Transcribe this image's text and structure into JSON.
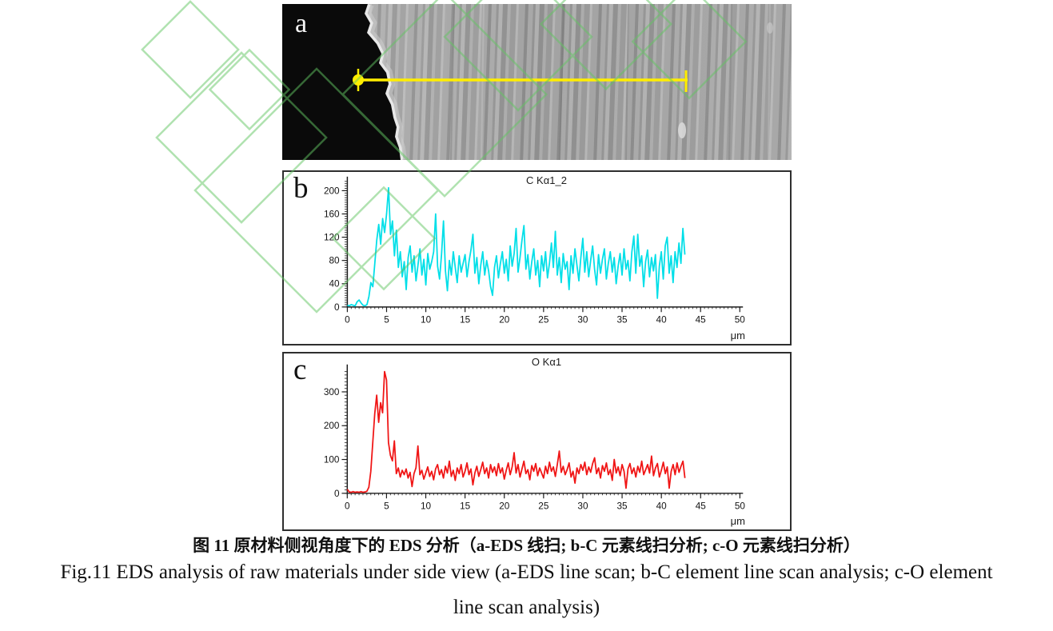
{
  "figure": {
    "panel_a": {
      "label": "a",
      "description": "SEM micrograph with EDS line-scan marker",
      "marker_color": "#ffee00"
    },
    "captions": {
      "zh": "图 11 原材料侧视角度下的 EDS 分析（a-EDS 线扫; b-C 元素线扫分析; c-O 元素线扫分析）",
      "en_line1": "Fig.11 EDS analysis of raw materials under side view (a-EDS line scan; b-C element line scan analysis; c-O element",
      "en_line2": "line scan analysis)"
    }
  },
  "colors": {
    "carbon_line": "#00dfe8",
    "oxygen_line": "#f01515",
    "watermark_green": "#63c663",
    "axis": "#1c1c1c"
  },
  "chart_data": [
    {
      "id": "chart-b",
      "type": "line",
      "panel_label": "b",
      "title": "C Kα1_2",
      "xlabel": "μm",
      "x_ticks": [
        0,
        5,
        10,
        15,
        20,
        25,
        30,
        35,
        40,
        45,
        50
      ],
      "y_ticks": [
        0,
        40,
        80,
        120,
        160,
        200
      ],
      "xlim": [
        0,
        50
      ],
      "ylim": [
        0,
        216
      ],
      "x_minor_step": 0.5,
      "y_minor_step": 4,
      "x_start": 0,
      "x_step": 0.25,
      "color_key": "carbon_line",
      "values": [
        3,
        2,
        4,
        3,
        2,
        9,
        12,
        7,
        3,
        2,
        4,
        18,
        42,
        35,
        75,
        115,
        142,
        108,
        152,
        128,
        160,
        205,
        125,
        148,
        88,
        132,
        68,
        95,
        52,
        78,
        30,
        85,
        105,
        60,
        88,
        45,
        72,
        100,
        55,
        82,
        38,
        92,
        65,
        78,
        95,
        160,
        70,
        48,
        90,
        148,
        62,
        28,
        80,
        55,
        95,
        68,
        42,
        88,
        60,
        75,
        90,
        52,
        78,
        98,
        125,
        58,
        85,
        40,
        72,
        95,
        55,
        80,
        62,
        35,
        20,
        68,
        88,
        50,
        75,
        95,
        58,
        82,
        45,
        105,
        70,
        92,
        135,
        60,
        85,
        115,
        140,
        65,
        90,
        48,
        78,
        100,
        55,
        80,
        35,
        88,
        62,
        95,
        50,
        75,
        110,
        68,
        130,
        55,
        85,
        42,
        92,
        65,
        78,
        30,
        88,
        58,
        100,
        72,
        45,
        85,
        118,
        60,
        95,
        52,
        80,
        105,
        65,
        38,
        90,
        58,
        82,
        100,
        48,
        75,
        95,
        60,
        85,
        40,
        70,
        92,
        55,
        100,
        65,
        80,
        45,
        95,
        122,
        58,
        125,
        70,
        88,
        35,
        78,
        98,
        52,
        85,
        62,
        90,
        15,
        70,
        95,
        48,
        105,
        120,
        58,
        88,
        42,
        95,
        68,
        110,
        75,
        135,
        90
      ]
    },
    {
      "id": "chart-c",
      "type": "line",
      "panel_label": "c",
      "title": "O Kα1",
      "xlabel": "μm",
      "x_ticks": [
        0,
        5,
        10,
        15,
        20,
        25,
        30,
        35,
        40,
        45,
        50
      ],
      "y_ticks": [
        0,
        100,
        200,
        300
      ],
      "xlim": [
        0,
        50
      ],
      "ylim": [
        0,
        367
      ],
      "x_minor_step": 0.5,
      "y_minor_step": 10,
      "x_start": 0,
      "x_step": 0.25,
      "color_key": "oxygen_line",
      "values": [
        12,
        4,
        3,
        5,
        3,
        4,
        3,
        5,
        3,
        4,
        6,
        18,
        65,
        150,
        235,
        290,
        210,
        268,
        238,
        360,
        335,
        150,
        112,
        96,
        155,
        58,
        75,
        48,
        68,
        55,
        72,
        45,
        62,
        20,
        58,
        75,
        140,
        55,
        68,
        42,
        60,
        78,
        50,
        65,
        40,
        72,
        85,
        55,
        70,
        45,
        80,
        60,
        95,
        50,
        68,
        38,
        75,
        58,
        85,
        48,
        65,
        90,
        55,
        72,
        25,
        60,
        80,
        50,
        70,
        92,
        58,
        75,
        45,
        85,
        62,
        78,
        52,
        88,
        60,
        75,
        42,
        68,
        90,
        55,
        78,
        120,
        60,
        85,
        48,
        72,
        95,
        58,
        70,
        40,
        82,
        65,
        88,
        52,
        75,
        60,
        45,
        80,
        58,
        92,
        65,
        78,
        50,
        85,
        125,
        62,
        80,
        55,
        70,
        90,
        48,
        65,
        30,
        75,
        58,
        85,
        68,
        92,
        55,
        78,
        62,
        88,
        105,
        58,
        75,
        45,
        82,
        65,
        90,
        55,
        70,
        38,
        100,
        60,
        78,
        52,
        85,
        65,
        15,
        72,
        88,
        58,
        75,
        48,
        80,
        62,
        95,
        55,
        70,
        85,
        60,
        110,
        52,
        75,
        88,
        48,
        68,
        92,
        58,
        78,
        15,
        65,
        85,
        55,
        90,
        62,
        80,
        95,
        45
      ]
    }
  ]
}
